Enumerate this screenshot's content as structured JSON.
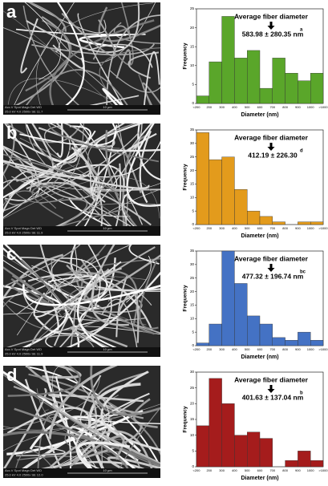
{
  "panels": [
    {
      "label": "a",
      "sem_info": [
        "Acc.V  Spot  Magn    Det  WD",
        "25.0 kV 4.0  2500x   SE  11.7"
      ],
      "scale": "10 μm"
    },
    {
      "label": "b",
      "sem_info": [
        "Acc.V  Spot  Magn    Det  WD",
        "25.0 kV 4.0  2500x   SE  11.9"
      ],
      "scale": "10 μm"
    },
    {
      "label": "c",
      "sem_info": [
        "Acc.V  Spot  Magn    Det  WD",
        "25.0 kV 4.0  2500x   SE  11.9"
      ],
      "scale": "10 μm"
    },
    {
      "label": "d",
      "sem_info": [
        "Acc.V  Spot  Magn    Det  WD",
        "25.0 kV 4.0  2500x   SE  12.0"
      ],
      "scale": "10 μm"
    }
  ],
  "chart_data": [
    {
      "type": "histogram",
      "x_label": "Diameter (nm)",
      "y_label": "Frequency",
      "bins": [
        "<200",
        "200",
        "300",
        "400",
        "500",
        "600",
        "700",
        "800",
        "900",
        "1000",
        ">1000"
      ],
      "values": [
        2,
        11,
        23,
        12,
        14,
        4,
        12,
        8,
        6,
        8
      ],
      "color": "#5aa62a",
      "ylim": [
        0,
        25
      ],
      "yticks": [
        0,
        5,
        10,
        15,
        20,
        25
      ],
      "annotation": "Average fiber diameter",
      "mean_text": "583.98 ± 280.35 nm",
      "mean_sup": "a"
    },
    {
      "type": "histogram",
      "x_label": "Diameter (nm)",
      "y_label": "Frequency",
      "bins": [
        "<200",
        "200",
        "300",
        "400",
        "500",
        "600",
        "700",
        "800",
        "900",
        "1000",
        ">1000"
      ],
      "values": [
        34,
        24,
        25,
        13,
        5,
        3,
        1,
        0,
        1,
        1
      ],
      "color": "#e39b1c",
      "ylim": [
        0,
        35
      ],
      "yticks": [
        0,
        5,
        10,
        15,
        20,
        25,
        30,
        35
      ],
      "annotation": "Average fiber diameter",
      "mean_text": "412.19 ± 226.30",
      "mean_sup": "d"
    },
    {
      "type": "histogram",
      "x_label": "Diameter (nm)",
      "y_label": "Frequency",
      "bins": [
        "<200",
        "200",
        "300",
        "400",
        "500",
        "600",
        "700",
        "800",
        "900",
        "1000",
        ">1000"
      ],
      "values": [
        1,
        8,
        35,
        23,
        11,
        8,
        3,
        2,
        5,
        2
      ],
      "color": "#4472c4",
      "ylim": [
        0,
        35
      ],
      "yticks": [
        0,
        5,
        10,
        15,
        20,
        25,
        30,
        35
      ],
      "annotation": "Average fiber diameter",
      "mean_text": "477.32 ± 196.74 nm",
      "mean_sup": "bc"
    },
    {
      "type": "histogram",
      "x_label": "Diameter (nm)",
      "y_label": "Frequency",
      "bins": [
        "<200",
        "200",
        "300",
        "400",
        "500",
        "600",
        "700",
        "800",
        "900",
        "1000",
        ">1000"
      ],
      "values": [
        13,
        28,
        20,
        10,
        11,
        9,
        0,
        2,
        5,
        2
      ],
      "color": "#a51c1c",
      "ylim": [
        0,
        30
      ],
      "yticks": [
        0,
        5,
        10,
        15,
        20,
        25,
        30
      ],
      "annotation": "Average fiber diameter",
      "mean_text": "401.63 ± 137.04 nm",
      "mean_sup": "b"
    }
  ]
}
